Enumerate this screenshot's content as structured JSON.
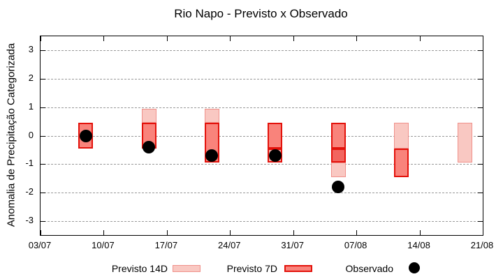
{
  "chart_data": {
    "type": "bar",
    "title": "Rio Napo - Previsto x Observado",
    "ylabel": "Anomalia de Precipitação Categorizada",
    "xlabel": "",
    "ylim": [
      -3.5,
      3.5
    ],
    "yticks": [
      3,
      2,
      1,
      0,
      -1,
      -2,
      -3
    ],
    "xtick_labels": [
      "03/07",
      "10/07",
      "17/07",
      "24/07",
      "31/07",
      "07/08",
      "14/08",
      "21/08"
    ],
    "xtick_days": [
      0,
      7,
      14,
      21,
      28,
      35,
      42,
      49
    ],
    "x_span_days": 49,
    "grid": "horizontal dashed",
    "legend_position": "below",
    "colors": {
      "previsto_14d_fill": "#f9c8c2",
      "previsto_14d_border": "#f0908a",
      "previsto_7d_fill": "#f9837b",
      "previsto_7d_border": "#e3120b",
      "overlap_fill": "#f2655f",
      "overlap_on_7d_fill": "#f5b0aa",
      "observado": "#000000",
      "grid_color": "#999999"
    },
    "bars": [
      {
        "date": "08/07",
        "day": 5,
        "observed": 0.0,
        "segments": [
          {
            "from": -0.45,
            "to": 0.45,
            "style": "7d"
          }
        ]
      },
      {
        "date": "15/07",
        "day": 12,
        "observed": -0.4,
        "segments": [
          {
            "from": 0.45,
            "to": 0.95,
            "style": "14d"
          },
          {
            "from": -0.45,
            "to": 0.45,
            "style": "7d"
          }
        ]
      },
      {
        "date": "22/07",
        "day": 19,
        "observed": -0.7,
        "segments": [
          {
            "from": 0.45,
            "to": 0.95,
            "style": "14d"
          },
          {
            "from": -0.95,
            "to": 0.45,
            "style": "7d"
          }
        ]
      },
      {
        "date": "29/07",
        "day": 26,
        "observed": -0.7,
        "segments": [
          {
            "from": -0.45,
            "to": 0.45,
            "style": "7d"
          },
          {
            "from": -0.95,
            "to": -0.45,
            "style": "14d_on_7d"
          }
        ]
      },
      {
        "date": "05/08",
        "day": 33,
        "observed": -1.8,
        "segments": [
          {
            "from": -0.45,
            "to": 0.45,
            "style": "7d"
          },
          {
            "from": -0.95,
            "to": -0.45,
            "style": "overlap"
          },
          {
            "from": -1.45,
            "to": -0.95,
            "style": "14d"
          }
        ]
      },
      {
        "date": "12/08",
        "day": 40,
        "observed": null,
        "segments": [
          {
            "from": -0.45,
            "to": 0.45,
            "style": "14d"
          },
          {
            "from": -1.45,
            "to": -0.45,
            "style": "7d"
          }
        ]
      },
      {
        "date": "19/08",
        "day": 47,
        "observed": null,
        "segments": [
          {
            "from": -0.95,
            "to": 0.45,
            "style": "14d"
          }
        ]
      }
    ],
    "legend": [
      {
        "label": "Previsto 14D",
        "swatch": "14d"
      },
      {
        "label": "Previsto 7D",
        "swatch": "7d"
      },
      {
        "label": "Observado",
        "swatch": "dot"
      }
    ]
  }
}
